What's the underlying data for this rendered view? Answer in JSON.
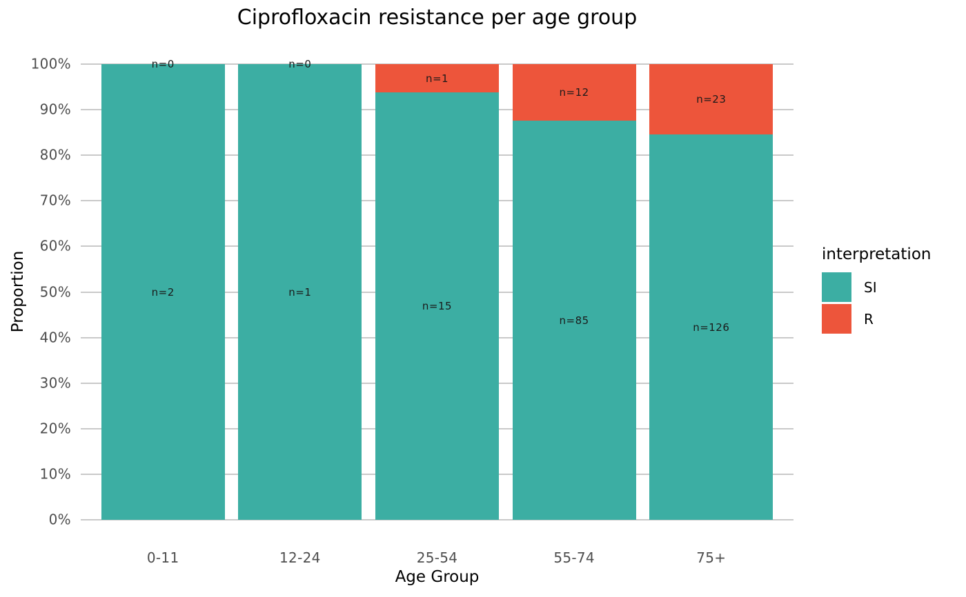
{
  "chart_data": {
    "type": "bar",
    "stacked": true,
    "normalized": "percent",
    "title": "Ciprofloxacin resistance per age group",
    "xlabel": "Age Group",
    "ylabel": "Proportion",
    "categories": [
      "0-11",
      "12-24",
      "25-54",
      "55-74",
      "75+"
    ],
    "series": [
      {
        "name": "SI",
        "color": "#3CAEA3",
        "counts": [
          2,
          1,
          15,
          85,
          126
        ],
        "bar_labels": [
          "n=2",
          "n=1",
          "n=15",
          "n=85",
          "n=126"
        ]
      },
      {
        "name": "R",
        "color": "#ED553B",
        "counts": [
          0,
          0,
          1,
          12,
          23
        ],
        "bar_labels": [
          "n=0",
          "n=0",
          "n=1",
          "n=12",
          "n=23"
        ]
      }
    ],
    "y_ticks": [
      "0%",
      "10%",
      "20%",
      "30%",
      "40%",
      "50%",
      "60%",
      "70%",
      "80%",
      "90%",
      "100%"
    ],
    "ylim": [
      0,
      1
    ],
    "grid": true,
    "legend": {
      "title": "interpretation",
      "position": "right"
    },
    "colors": {
      "si": "#3CAEA3",
      "r": "#ED553B",
      "gridline": "#C9C9C9",
      "axis_text": "#4D4D4D",
      "text": "#000000"
    }
  }
}
